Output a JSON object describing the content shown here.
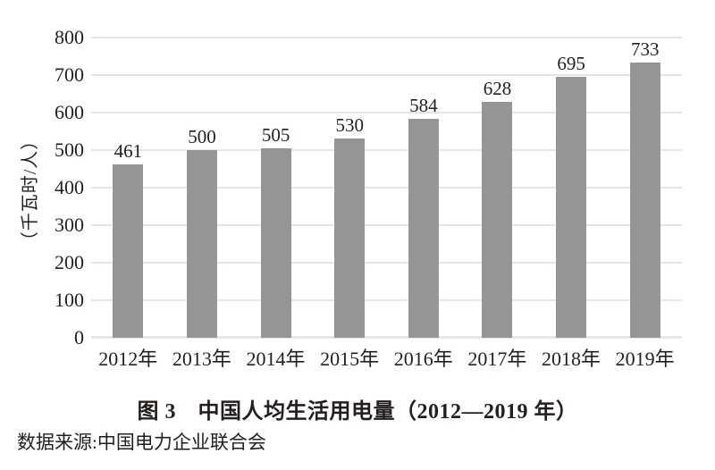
{
  "figure": {
    "title": "图 3　中国人均生活用电量（2012—2019 年）",
    "source": "数据来源:中国电力企业联合会"
  },
  "chart_data": {
    "type": "bar",
    "categories": [
      "2012年",
      "2013年",
      "2014年",
      "2015年",
      "2016年",
      "2017年",
      "2018年",
      "2019年"
    ],
    "values": [
      461,
      500,
      505,
      530,
      584,
      628,
      695,
      733
    ],
    "title": "图 3　中国人均生活用电量（2012—2019 年）",
    "xlabel": "",
    "ylabel": "（千瓦时/人）",
    "ylim": [
      0,
      800
    ],
    "yticks": [
      0,
      100,
      200,
      300,
      400,
      500,
      600,
      700,
      800
    ],
    "grid": true,
    "legend": "none",
    "data_labels": true
  },
  "colors": {
    "bar": "#979593",
    "gridline": "#e8e6e4",
    "text": "#241f1d",
    "background": "#ffffff"
  }
}
